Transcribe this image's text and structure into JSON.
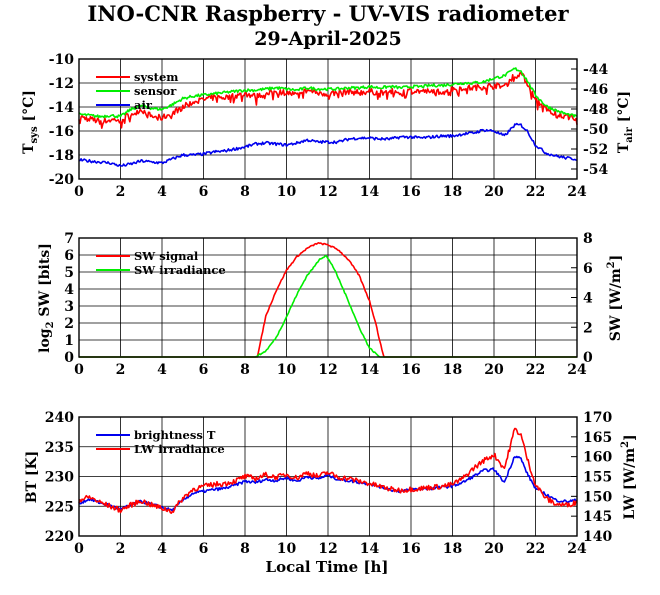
{
  "title": "INO-CNR Raspberry - UV-VIS radiometer",
  "date": "29-April-2025",
  "xlabel": "Local Time [h]",
  "colors": {
    "red": "#ff0000",
    "green": "#00ee00",
    "blue": "#0000ee",
    "grid": "#000000"
  },
  "panels": {
    "temp": {
      "ylabel_left": {
        "main": "T",
        "sub": "sys",
        "unit": " [°C]"
      },
      "ylabel_right": {
        "main": "T",
        "sub": "air",
        "unit": " [°C]"
      }
    },
    "sw": {
      "ylabel_left": {
        "pre": "log",
        "sub": "2",
        "post": " SW [bits]"
      },
      "ylabel_right": {
        "main": "SW [W/m",
        "sup": "2",
        "post": "]"
      }
    },
    "lw": {
      "ylabel_left": "BT [K]",
      "ylabel_right": {
        "main": "LW [W/m",
        "sup": "2",
        "post": "]"
      }
    }
  },
  "chart_data": [
    {
      "type": "line",
      "id": "temp",
      "x_range": [
        0,
        24
      ],
      "x_ticks": [
        "0",
        "2",
        "4",
        "6",
        "8",
        "10",
        "12",
        "14",
        "16",
        "18",
        "20",
        "22",
        "24"
      ],
      "ylim": [
        -20,
        -10
      ],
      "y_ticks": [
        "-20",
        "-18",
        "-16",
        "-14",
        "-12",
        "-10"
      ],
      "y2lim": [
        -55,
        -43
      ],
      "y2_ticks": [
        "-54",
        "-52",
        "-50",
        "-48",
        "-46",
        "-44"
      ],
      "grid": true,
      "legend_position": "top-left",
      "series": [
        {
          "name": "system",
          "color": "#ff0000",
          "axis": "left",
          "x": [
            0,
            0.5,
            1,
            1.5,
            2,
            2.5,
            3,
            3.5,
            4,
            4.5,
            5,
            5.5,
            6,
            6.5,
            7,
            7.5,
            8,
            8.5,
            9,
            9.5,
            10,
            10.5,
            11,
            11.5,
            12,
            12.5,
            13,
            13.5,
            14,
            14.5,
            15,
            15.5,
            16,
            16.5,
            17,
            17.5,
            18,
            18.5,
            19,
            19.5,
            20,
            20.5,
            21,
            21.3,
            21.6,
            22,
            22.5,
            23,
            23.5,
            24
          ],
          "y": [
            -14.8,
            -15.0,
            -15.2,
            -15.1,
            -15.0,
            -14.6,
            -14.2,
            -14.8,
            -14.9,
            -14.5,
            -14.0,
            -13.6,
            -13.4,
            -13.2,
            -13.2,
            -13.1,
            -12.9,
            -13.1,
            -13.0,
            -12.7,
            -12.8,
            -13.0,
            -12.6,
            -12.8,
            -12.9,
            -12.8,
            -12.7,
            -12.8,
            -12.7,
            -12.8,
            -12.7,
            -12.8,
            -12.6,
            -12.7,
            -12.7,
            -12.7,
            -12.5,
            -12.4,
            -12.4,
            -12.3,
            -12.2,
            -12.3,
            -11.3,
            -11.2,
            -12.0,
            -13.3,
            -14.2,
            -14.6,
            -14.8,
            -14.9
          ]
        },
        {
          "name": "sensor",
          "color": "#00ee00",
          "axis": "left",
          "x": [
            0,
            0.5,
            1,
            1.5,
            2,
            2.5,
            3,
            3.5,
            4,
            4.5,
            5,
            5.5,
            6,
            6.5,
            7,
            7.5,
            8,
            8.5,
            9,
            9.5,
            10,
            10.5,
            11,
            11.5,
            12,
            12.5,
            13,
            13.5,
            14,
            14.5,
            15,
            15.5,
            16,
            16.5,
            17,
            17.5,
            18,
            18.5,
            19,
            19.5,
            20,
            20.5,
            21,
            21.3,
            21.6,
            22,
            22.5,
            23,
            23.5,
            24
          ],
          "y": [
            -14.6,
            -14.7,
            -14.8,
            -14.7,
            -14.8,
            -14.2,
            -13.9,
            -14.1,
            -14.2,
            -13.8,
            -13.3,
            -13.1,
            -13.0,
            -12.9,
            -12.8,
            -12.7,
            -12.6,
            -12.6,
            -12.5,
            -12.4,
            -12.5,
            -12.6,
            -12.4,
            -12.5,
            -12.5,
            -12.5,
            -12.4,
            -12.4,
            -12.3,
            -12.4,
            -12.3,
            -12.4,
            -12.3,
            -12.3,
            -12.2,
            -12.2,
            -12.1,
            -12.0,
            -12.0,
            -11.9,
            -11.6,
            -11.4,
            -10.8,
            -11.0,
            -11.8,
            -13.0,
            -13.9,
            -14.3,
            -14.6,
            -14.8
          ]
        },
        {
          "name": "air",
          "color": "#0000ee",
          "axis": "right",
          "x": [
            0,
            0.5,
            1,
            1.5,
            2,
            2.5,
            3,
            3.5,
            4,
            4.5,
            5,
            5.5,
            6,
            6.5,
            7,
            7.5,
            8,
            8.5,
            9,
            9.5,
            10,
            10.5,
            11,
            11.5,
            12,
            12.5,
            13,
            13.5,
            14,
            14.5,
            15,
            15.5,
            16,
            16.5,
            17,
            17.5,
            18,
            18.5,
            19,
            19.5,
            20,
            20.5,
            21,
            21.3,
            21.6,
            22,
            22.5,
            23,
            23.5,
            24
          ],
          "y": [
            -53.1,
            -53.2,
            -53.3,
            -53.4,
            -53.7,
            -53.5,
            -53.2,
            -53.3,
            -53.4,
            -53.0,
            -52.6,
            -52.6,
            -52.5,
            -52.3,
            -52.2,
            -52.0,
            -51.8,
            -51.5,
            -51.4,
            -51.5,
            -51.6,
            -51.4,
            -51.1,
            -51.3,
            -51.3,
            -51.3,
            -51.0,
            -50.9,
            -50.9,
            -51.0,
            -51.0,
            -50.8,
            -50.8,
            -50.9,
            -50.8,
            -50.7,
            -50.7,
            -50.5,
            -50.4,
            -50.1,
            -50.2,
            -50.7,
            -49.6,
            -49.6,
            -50.2,
            -51.6,
            -52.4,
            -52.7,
            -52.9,
            -53.0
          ]
        }
      ]
    },
    {
      "type": "line",
      "id": "sw",
      "x_range": [
        0,
        24
      ],
      "x_ticks": [
        "0",
        "2",
        "4",
        "6",
        "8",
        "10",
        "12",
        "14",
        "16",
        "18",
        "20",
        "22",
        "24"
      ],
      "ylim": [
        0,
        7
      ],
      "y_ticks": [
        "0",
        "1",
        "2",
        "3",
        "4",
        "5",
        "6",
        "7"
      ],
      "y2lim": [
        0,
        8
      ],
      "y2_ticks": [
        "0",
        "2",
        "4",
        "6",
        "8"
      ],
      "grid": true,
      "legend_position": "top-left",
      "series": [
        {
          "name": "SW signal",
          "color": "#ff0000",
          "axis": "left",
          "x": [
            0,
            8.6,
            8.8,
            9.0,
            9.5,
            10,
            10.5,
            11,
            11.5,
            12,
            12.5,
            13,
            13.5,
            14,
            14.3,
            14.5,
            14.7,
            24
          ],
          "y": [
            0,
            0,
            1.2,
            2.4,
            3.9,
            5.1,
            5.9,
            6.4,
            6.7,
            6.6,
            6.3,
            5.7,
            4.8,
            3.3,
            2.0,
            0.9,
            0,
            0
          ]
        },
        {
          "name": "SW irradiance",
          "color": "#00ee00",
          "axis": "right",
          "x": [
            0,
            8.5,
            9.0,
            9.5,
            10,
            10.5,
            11,
            11.3,
            11.6,
            11.9,
            12.2,
            12.5,
            13,
            13.5,
            14,
            14.5,
            24
          ],
          "y": [
            0,
            0,
            0.4,
            1.3,
            2.7,
            4.2,
            5.5,
            6.0,
            6.6,
            6.8,
            6.2,
            5.3,
            3.7,
            2.0,
            0.6,
            0,
            0
          ]
        }
      ]
    },
    {
      "type": "line",
      "id": "lw",
      "x_range": [
        0,
        24
      ],
      "x_ticks": [
        "0",
        "2",
        "4",
        "6",
        "8",
        "10",
        "12",
        "14",
        "16",
        "18",
        "20",
        "22",
        "24"
      ],
      "ylim": [
        220,
        240
      ],
      "y_ticks": [
        "220",
        "225",
        "230",
        "235",
        "240"
      ],
      "y2lim": [
        140,
        170
      ],
      "y2_ticks": [
        "140",
        "145",
        "150",
        "155",
        "160",
        "165",
        "170"
      ],
      "grid": true,
      "legend_position": "top-left",
      "series": [
        {
          "name": "brightness T",
          "color": "#0000ee",
          "axis": "left",
          "x": [
            0,
            0.5,
            1,
            1.5,
            2,
            2.5,
            3,
            3.5,
            4,
            4.5,
            5,
            5.5,
            6,
            6.5,
            7,
            7.5,
            8,
            8.5,
            9,
            9.5,
            10,
            10.5,
            11,
            11.5,
            12,
            12.5,
            13,
            13.5,
            14,
            14.5,
            15,
            15.5,
            16,
            16.5,
            17,
            17.5,
            18,
            18.5,
            19,
            19.5,
            20,
            20.5,
            21,
            21.3,
            21.6,
            22,
            22.5,
            23,
            23.5,
            24
          ],
          "y": [
            225.5,
            226.2,
            225.6,
            225.1,
            224.5,
            225.2,
            225.8,
            225.3,
            224.8,
            224.3,
            226.0,
            227.2,
            227.5,
            227.8,
            228.0,
            228.5,
            229.2,
            229.0,
            229.5,
            229.3,
            229.8,
            229.2,
            230.0,
            229.6,
            230.2,
            229.5,
            229.3,
            229.0,
            228.8,
            228.3,
            227.8,
            227.5,
            227.8,
            227.9,
            228.0,
            228.2,
            228.4,
            229.0,
            230.0,
            231.0,
            231.2,
            229.0,
            233.5,
            233.0,
            230.5,
            228.0,
            227.0,
            226.0,
            225.8,
            226.0
          ]
        },
        {
          "name": "LW irradiance",
          "color": "#ff0000",
          "axis": "right",
          "x": [
            0,
            0.5,
            1,
            1.5,
            2,
            2.5,
            3,
            3.5,
            4,
            4.5,
            5,
            5.5,
            6,
            6.5,
            7,
            7.5,
            8,
            8.5,
            9,
            9.5,
            10,
            10.5,
            11,
            11.5,
            12,
            12.5,
            13,
            13.5,
            14,
            14.5,
            15,
            15.5,
            16,
            16.5,
            17,
            17.5,
            18,
            18.5,
            19,
            19.5,
            20,
            20.5,
            21,
            21.3,
            21.6,
            22,
            22.5,
            23,
            23.5,
            24
          ],
          "y": [
            149.0,
            149.8,
            148.5,
            147.5,
            146.5,
            147.8,
            148.9,
            147.8,
            147.0,
            146.2,
            149.5,
            151.8,
            152.5,
            153.0,
            153.2,
            153.8,
            155.0,
            154.5,
            155.4,
            154.8,
            155.5,
            154.6,
            156.0,
            155.0,
            156.0,
            154.8,
            154.5,
            153.8,
            153.2,
            152.5,
            151.8,
            151.5,
            151.8,
            152.0,
            152.3,
            152.5,
            153.0,
            154.5,
            157.0,
            159.0,
            160.5,
            157.0,
            167.0,
            165.5,
            159.5,
            153.0,
            149.5,
            148.0,
            147.8,
            148.5
          ]
        }
      ]
    }
  ]
}
